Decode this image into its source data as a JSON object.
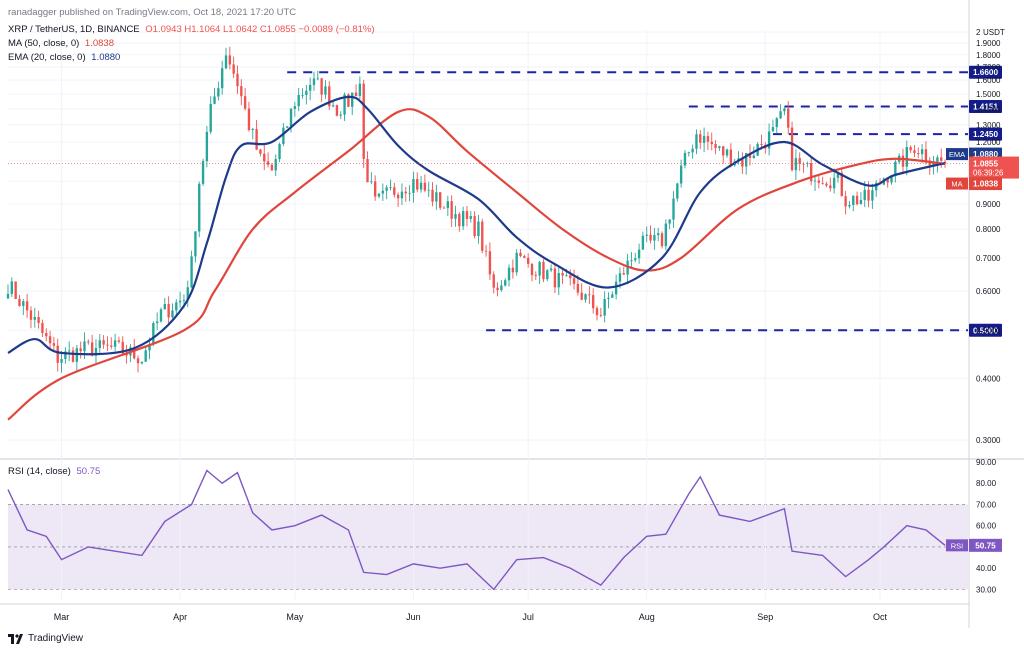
{
  "header": {
    "published": "ranadagger published on TradingView.com, Oct 18, 2021 17:20 UTC",
    "symbol": "XRP / TetherUS, 1D, BINANCE",
    "ohlc": "O1.0943 H1.1064 L1.0642 C1.0855 −0.0089 (−0.81%)",
    "ma_label": "MA (50, close, 0)",
    "ma_value": "1.0838",
    "ema_label": "EMA (20, close, 0)",
    "ema_value": "1.0880",
    "rsi_label": "RSI (14, close)",
    "rsi_value": "50.75"
  },
  "footer": {
    "brand": "TradingView"
  },
  "colors": {
    "up": "#26a69a",
    "down": "#ef5350",
    "ema": "#1e3a8a",
    "ma": "#e0463c",
    "level": "#1e22aa",
    "rsi": "#7e57c2",
    "band": "#ede7f6"
  },
  "chart_data": [
    {
      "type": "candlestick",
      "currency": "USDT",
      "price_axis_ticks": [
        "2",
        "1.9000",
        "1.8000",
        "1.7000",
        "1.6000",
        "1.5000",
        "1.4000",
        "1.3000",
        "1.2000",
        "1.1000",
        "1.0000",
        "0.9000",
        "0.8000",
        "0.7000",
        "0.6000",
        "0.5000",
        "0.4000",
        "0.3000"
      ],
      "x_ticks": [
        "Mar",
        "Apr",
        "May",
        "Jun",
        "Jul",
        "Aug",
        "Sep",
        "Oct"
      ],
      "x_range": [
        "2021-02-15",
        "2021-10-24"
      ],
      "y_scale": "log",
      "ylim": [
        0.28,
        2.02
      ],
      "anchors": [
        [
          "2021-02-15",
          0.62
        ],
        [
          "2021-02-22",
          0.52
        ],
        [
          "2021-02-28",
          0.44
        ],
        [
          "2021-03-08",
          0.46
        ],
        [
          "2021-03-15",
          0.46
        ],
        [
          "2021-03-22",
          0.44
        ],
        [
          "2021-03-27",
          0.54
        ],
        [
          "2021-04-02",
          0.58
        ],
        [
          "2021-04-04",
          0.68
        ],
        [
          "2021-04-06",
          1.0
        ],
        [
          "2021-04-09",
          1.38
        ],
        [
          "2021-04-13",
          1.83
        ],
        [
          "2021-04-16",
          1.58
        ],
        [
          "2021-04-19",
          1.3
        ],
        [
          "2021-04-22",
          1.1
        ],
        [
          "2021-04-25",
          1.05
        ],
        [
          "2021-05-01",
          1.45
        ],
        [
          "2021-05-05",
          1.58
        ],
        [
          "2021-05-08",
          1.55
        ],
        [
          "2021-05-12",
          1.4
        ],
        [
          "2021-05-15",
          1.45
        ],
        [
          "2021-05-18",
          1.58
        ],
        [
          "2021-05-19",
          1.1
        ],
        [
          "2021-05-22",
          0.9
        ],
        [
          "2021-05-26",
          0.95
        ],
        [
          "2021-06-01",
          1.0
        ],
        [
          "2021-06-10",
          0.88
        ],
        [
          "2021-06-18",
          0.8
        ],
        [
          "2021-06-22",
          0.6
        ],
        [
          "2021-06-28",
          0.7
        ],
        [
          "2021-07-06",
          0.65
        ],
        [
          "2021-07-14",
          0.6
        ],
        [
          "2021-07-20",
          0.54
        ],
        [
          "2021-07-24",
          0.62
        ],
        [
          "2021-07-30",
          0.74
        ],
        [
          "2021-08-05",
          0.76
        ],
        [
          "2021-08-10",
          1.05
        ],
        [
          "2021-08-14",
          1.25
        ],
        [
          "2021-08-20",
          1.15
        ],
        [
          "2021-08-26",
          1.1
        ],
        [
          "2021-09-03",
          1.25
        ],
        [
          "2021-09-06",
          1.38
        ],
        [
          "2021-09-08",
          1.1
        ],
        [
          "2021-09-12",
          1.05
        ],
        [
          "2021-09-20",
          1.0
        ],
        [
          "2021-09-22",
          0.92
        ],
        [
          "2021-09-28",
          0.92
        ],
        [
          "2021-10-02",
          1.02
        ],
        [
          "2021-10-06",
          1.08
        ],
        [
          "2021-10-10",
          1.18
        ],
        [
          "2021-10-14",
          1.12
        ],
        [
          "2021-10-18",
          1.0855
        ]
      ],
      "last": {
        "date": "2021-10-18",
        "open": 1.0943,
        "high": 1.1064,
        "low": 1.0642,
        "close": 1.0855
      },
      "ema20": [
        [
          "2021-02-15",
          0.45
        ],
        [
          "2021-02-22",
          0.48
        ],
        [
          "2021-03-01",
          0.45
        ],
        [
          "2021-03-20",
          0.46
        ],
        [
          "2021-04-02",
          0.56
        ],
        [
          "2021-04-08",
          0.75
        ],
        [
          "2021-04-13",
          1.02
        ],
        [
          "2021-04-17",
          1.18
        ],
        [
          "2021-04-25",
          1.2
        ],
        [
          "2021-05-05",
          1.38
        ],
        [
          "2021-05-15",
          1.48
        ],
        [
          "2021-05-20",
          1.4
        ],
        [
          "2021-05-28",
          1.18
        ],
        [
          "2021-06-05",
          1.05
        ],
        [
          "2021-06-18",
          0.92
        ],
        [
          "2021-06-28",
          0.77
        ],
        [
          "2021-07-08",
          0.68
        ],
        [
          "2021-07-22",
          0.61
        ],
        [
          "2021-08-05",
          0.7
        ],
        [
          "2021-08-15",
          0.95
        ],
        [
          "2021-08-25",
          1.1
        ],
        [
          "2021-09-06",
          1.2
        ],
        [
          "2021-09-16",
          1.08
        ],
        [
          "2021-09-28",
          0.98
        ],
        [
          "2021-10-05",
          1.03
        ],
        [
          "2021-10-18",
          1.088
        ]
      ],
      "ma50": [
        [
          "2021-02-15",
          0.33
        ],
        [
          "2021-03-01",
          0.4
        ],
        [
          "2021-04-02",
          0.5
        ],
        [
          "2021-04-10",
          0.6
        ],
        [
          "2021-04-20",
          0.8
        ],
        [
          "2021-05-01",
          0.95
        ],
        [
          "2021-05-15",
          1.15
        ],
        [
          "2021-05-28",
          1.38
        ],
        [
          "2021-06-05",
          1.35
        ],
        [
          "2021-06-15",
          1.15
        ],
        [
          "2021-06-28",
          0.95
        ],
        [
          "2021-07-10",
          0.8
        ],
        [
          "2021-07-22",
          0.7
        ],
        [
          "2021-08-01",
          0.66
        ],
        [
          "2021-08-10",
          0.7
        ],
        [
          "2021-08-25",
          0.88
        ],
        [
          "2021-09-10",
          1.0
        ],
        [
          "2021-09-25",
          1.08
        ],
        [
          "2021-10-05",
          1.11
        ],
        [
          "2021-10-18",
          1.0838
        ]
      ],
      "levels": [
        {
          "value": 1.66,
          "label": "1.6600",
          "from": "2021-04-29",
          "to": "2021-10-24"
        },
        {
          "value": 1.4151,
          "label": "1.4151",
          "from": "2021-08-12",
          "to": "2021-10-24"
        },
        {
          "value": 1.245,
          "label": "1.2450",
          "from": "2021-09-03",
          "to": "2021-10-24"
        },
        {
          "value": 0.5,
          "label": "0.5000",
          "from": "2021-06-20",
          "to": "2021-10-24"
        }
      ],
      "right_labels": [
        {
          "name": "EMA",
          "value": "1.0880"
        },
        {
          "name": "price",
          "value": "1.0855",
          "countdown": "06:39:26"
        },
        {
          "name": "MA",
          "value": "1.0838"
        }
      ]
    },
    {
      "type": "line",
      "title": "RSI (14, close)",
      "ylim": [
        25,
        90
      ],
      "y_ticks": [
        "90.00",
        "80.00",
        "70.00",
        "60.00",
        "50.00",
        "40.00",
        "30.00"
      ],
      "bands": [
        30,
        70
      ],
      "midline": 50,
      "last_value": 50.75,
      "series": [
        [
          "2021-02-15",
          77
        ],
        [
          "2021-02-20",
          58
        ],
        [
          "2021-02-25",
          55
        ],
        [
          "2021-03-01",
          44
        ],
        [
          "2021-03-08",
          50
        ],
        [
          "2021-03-15",
          48
        ],
        [
          "2021-03-22",
          46
        ],
        [
          "2021-03-28",
          62
        ],
        [
          "2021-04-04",
          70
        ],
        [
          "2021-04-08",
          86
        ],
        [
          "2021-04-12",
          80
        ],
        [
          "2021-04-16",
          85
        ],
        [
          "2021-04-20",
          66
        ],
        [
          "2021-04-25",
          58
        ],
        [
          "2021-05-01",
          60
        ],
        [
          "2021-05-08",
          65
        ],
        [
          "2021-05-15",
          58
        ],
        [
          "2021-05-19",
          38
        ],
        [
          "2021-05-25",
          37
        ],
        [
          "2021-06-01",
          42
        ],
        [
          "2021-06-08",
          40
        ],
        [
          "2021-06-15",
          42
        ],
        [
          "2021-06-22",
          30
        ],
        [
          "2021-06-28",
          44
        ],
        [
          "2021-07-05",
          45
        ],
        [
          "2021-07-12",
          40
        ],
        [
          "2021-07-20",
          32
        ],
        [
          "2021-07-26",
          45
        ],
        [
          "2021-08-01",
          55
        ],
        [
          "2021-08-06",
          56
        ],
        [
          "2021-08-12",
          75
        ],
        [
          "2021-08-15",
          83
        ],
        [
          "2021-08-20",
          65
        ],
        [
          "2021-08-28",
          62
        ],
        [
          "2021-09-06",
          68
        ],
        [
          "2021-09-08",
          48
        ],
        [
          "2021-09-16",
          46
        ],
        [
          "2021-09-22",
          36
        ],
        [
          "2021-09-28",
          44
        ],
        [
          "2021-10-02",
          50
        ],
        [
          "2021-10-08",
          60
        ],
        [
          "2021-10-13",
          58
        ],
        [
          "2021-10-18",
          50.75
        ]
      ]
    }
  ]
}
